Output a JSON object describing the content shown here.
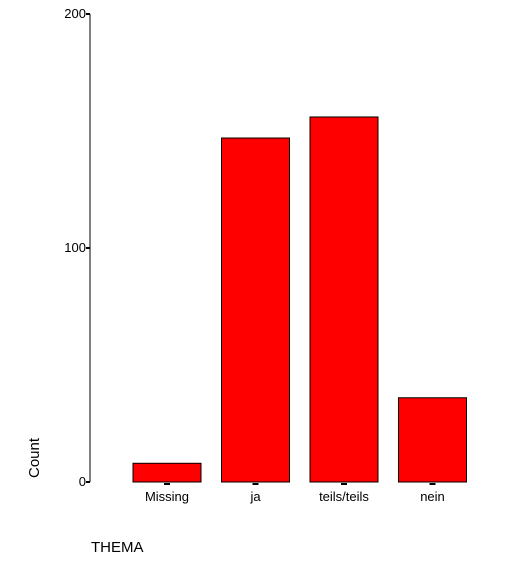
{
  "chart_data": {
    "type": "bar",
    "categories": [
      "Missing",
      "ja",
      "teils/teils",
      "nein"
    ],
    "values": [
      8,
      147,
      156,
      36
    ],
    "xlabel": "THEMA",
    "ylabel": "Count",
    "ylim": [
      0,
      200
    ],
    "yticks": [
      0,
      100,
      200
    ],
    "grid": false,
    "legend": "none",
    "bar_color": "#ff0000",
    "bar_edge_color": "#000000"
  }
}
